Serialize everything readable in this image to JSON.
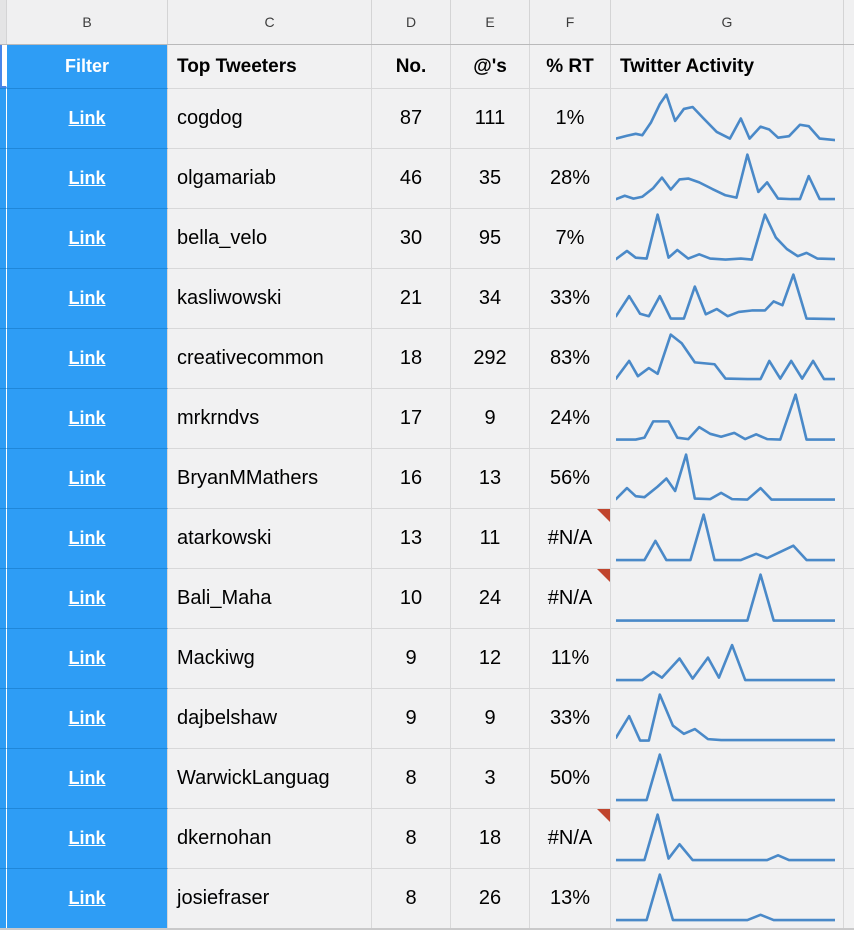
{
  "column_strip": {
    "letters": [
      "B",
      "C",
      "D",
      "E",
      "F",
      "G"
    ]
  },
  "header_row": {
    "filter_label": "Filter",
    "tweeters_label": "Top Tweeters",
    "no_label": "No.",
    "ats_label": "@'s",
    "rt_label": "% RT",
    "activity_label": "Twitter Activity"
  },
  "colors": {
    "link_blue": "#2e9df5",
    "selection_blue": "#4a86e8",
    "sparkline_blue": "#4a89c8",
    "note_red": "#c0452e",
    "cell_bg": "#f1f1f2",
    "gridline": "#d8d8d9"
  },
  "rows": [
    {
      "link": "Link",
      "name": "cogdog",
      "no": "87",
      "ats": "111",
      "rt": "1%",
      "note": false,
      "spark": [
        [
          0,
          0.08
        ],
        [
          5,
          0.14
        ],
        [
          9,
          0.18
        ],
        [
          12,
          0.15
        ],
        [
          16,
          0.42
        ],
        [
          20,
          0.8
        ],
        [
          23,
          1.0
        ],
        [
          27,
          0.45
        ],
        [
          31,
          0.7
        ],
        [
          35,
          0.74
        ],
        [
          40,
          0.5
        ],
        [
          46,
          0.22
        ],
        [
          52,
          0.08
        ],
        [
          57,
          0.5
        ],
        [
          61,
          0.08
        ],
        [
          66,
          0.33
        ],
        [
          70,
          0.27
        ],
        [
          74,
          0.1
        ],
        [
          79,
          0.13
        ],
        [
          84,
          0.37
        ],
        [
          88,
          0.34
        ],
        [
          93,
          0.08
        ],
        [
          100,
          0.05
        ]
      ]
    },
    {
      "link": "Link",
      "name": "olgamariab",
      "no": "46",
      "ats": "35",
      "rt": "28%",
      "note": false,
      "spark": [
        [
          0,
          0.07
        ],
        [
          4,
          0.14
        ],
        [
          8,
          0.08
        ],
        [
          12,
          0.12
        ],
        [
          17,
          0.3
        ],
        [
          21,
          0.52
        ],
        [
          25,
          0.27
        ],
        [
          29,
          0.48
        ],
        [
          33,
          0.5
        ],
        [
          38,
          0.42
        ],
        [
          44,
          0.28
        ],
        [
          50,
          0.15
        ],
        [
          55,
          0.1
        ],
        [
          60,
          1.0
        ],
        [
          65,
          0.22
        ],
        [
          69,
          0.42
        ],
        [
          74,
          0.08
        ],
        [
          80,
          0.07
        ],
        [
          84,
          0.07
        ],
        [
          88,
          0.55
        ],
        [
          93,
          0.07
        ],
        [
          100,
          0.07
        ]
      ]
    },
    {
      "link": "Link",
      "name": "bella_velo",
      "no": "30",
      "ats": "95",
      "rt": "7%",
      "note": false,
      "spark": [
        [
          0,
          0.07
        ],
        [
          5,
          0.24
        ],
        [
          9,
          0.1
        ],
        [
          14,
          0.08
        ],
        [
          19,
          1.0
        ],
        [
          24,
          0.1
        ],
        [
          28,
          0.26
        ],
        [
          33,
          0.08
        ],
        [
          38,
          0.17
        ],
        [
          43,
          0.08
        ],
        [
          50,
          0.06
        ],
        [
          57,
          0.08
        ],
        [
          62,
          0.06
        ],
        [
          68,
          1.0
        ],
        [
          73,
          0.52
        ],
        [
          78,
          0.28
        ],
        [
          83,
          0.13
        ],
        [
          87,
          0.2
        ],
        [
          92,
          0.08
        ],
        [
          100,
          0.07
        ]
      ]
    },
    {
      "link": "Link",
      "name": "kasliwowski",
      "no": "21",
      "ats": "34",
      "rt": "33%",
      "note": false,
      "spark": [
        [
          0,
          0.13
        ],
        [
          6,
          0.55
        ],
        [
          11,
          0.18
        ],
        [
          15,
          0.13
        ],
        [
          20,
          0.55
        ],
        [
          25,
          0.08
        ],
        [
          31,
          0.08
        ],
        [
          36,
          0.75
        ],
        [
          41,
          0.17
        ],
        [
          46,
          0.28
        ],
        [
          51,
          0.13
        ],
        [
          56,
          0.22
        ],
        [
          62,
          0.25
        ],
        [
          68,
          0.25
        ],
        [
          72,
          0.44
        ],
        [
          76,
          0.36
        ],
        [
          81,
          1.0
        ],
        [
          87,
          0.08
        ],
        [
          100,
          0.07
        ]
      ]
    },
    {
      "link": "Link",
      "name": "creativecommon",
      "no": "18",
      "ats": "292",
      "rt": "83%",
      "note": false,
      "spark": [
        [
          0,
          0.08
        ],
        [
          6,
          0.45
        ],
        [
          10,
          0.13
        ],
        [
          15,
          0.3
        ],
        [
          19,
          0.18
        ],
        [
          25,
          1.0
        ],
        [
          30,
          0.82
        ],
        [
          36,
          0.42
        ],
        [
          45,
          0.38
        ],
        [
          50,
          0.08
        ],
        [
          60,
          0.07
        ],
        [
          66,
          0.07
        ],
        [
          70,
          0.45
        ],
        [
          75,
          0.08
        ],
        [
          80,
          0.45
        ],
        [
          85,
          0.08
        ],
        [
          90,
          0.45
        ],
        [
          95,
          0.07
        ],
        [
          100,
          0.07
        ]
      ]
    },
    {
      "link": "Link",
      "name": "mrkrndvs",
      "no": "17",
      "ats": "9",
      "rt": "24%",
      "note": false,
      "spark": [
        [
          0,
          0.06
        ],
        [
          9,
          0.06
        ],
        [
          13,
          0.1
        ],
        [
          17,
          0.44
        ],
        [
          24,
          0.44
        ],
        [
          28,
          0.1
        ],
        [
          33,
          0.07
        ],
        [
          38,
          0.32
        ],
        [
          43,
          0.18
        ],
        [
          48,
          0.12
        ],
        [
          54,
          0.2
        ],
        [
          59,
          0.07
        ],
        [
          64,
          0.17
        ],
        [
          69,
          0.07
        ],
        [
          75,
          0.06
        ],
        [
          82,
          1.0
        ],
        [
          87,
          0.06
        ],
        [
          100,
          0.06
        ]
      ]
    },
    {
      "link": "Link",
      "name": "BryanMMathers",
      "no": "16",
      "ats": "13",
      "rt": "56%",
      "note": false,
      "spark": [
        [
          0,
          0.07
        ],
        [
          5,
          0.3
        ],
        [
          9,
          0.13
        ],
        [
          13,
          0.11
        ],
        [
          19,
          0.33
        ],
        [
          23,
          0.5
        ],
        [
          27,
          0.24
        ],
        [
          32,
          1.0
        ],
        [
          36,
          0.08
        ],
        [
          43,
          0.07
        ],
        [
          48,
          0.2
        ],
        [
          53,
          0.07
        ],
        [
          60,
          0.06
        ],
        [
          66,
          0.3
        ],
        [
          71,
          0.06
        ],
        [
          100,
          0.06
        ]
      ]
    },
    {
      "link": "Link",
      "name": "atarkowski",
      "no": "13",
      "ats": "11",
      "rt": "#N/A",
      "note": true,
      "spark": [
        [
          0,
          0.05
        ],
        [
          13,
          0.05
        ],
        [
          18,
          0.45
        ],
        [
          23,
          0.05
        ],
        [
          34,
          0.05
        ],
        [
          40,
          1.0
        ],
        [
          45,
          0.05
        ],
        [
          57,
          0.05
        ],
        [
          64,
          0.18
        ],
        [
          69,
          0.09
        ],
        [
          75,
          0.22
        ],
        [
          81,
          0.35
        ],
        [
          87,
          0.05
        ],
        [
          100,
          0.05
        ]
      ]
    },
    {
      "link": "Link",
      "name": "Bali_Maha",
      "no": "10",
      "ats": "24",
      "rt": "#N/A",
      "note": true,
      "spark": [
        [
          0,
          0.04
        ],
        [
          60,
          0.04
        ],
        [
          66,
          1.0
        ],
        [
          72,
          0.04
        ],
        [
          100,
          0.04
        ]
      ]
    },
    {
      "link": "Link",
      "name": "Mackiwg",
      "no": "9",
      "ats": "12",
      "rt": "11%",
      "note": false,
      "spark": [
        [
          0,
          0.05
        ],
        [
          12,
          0.05
        ],
        [
          17,
          0.22
        ],
        [
          21,
          0.1
        ],
        [
          29,
          0.5
        ],
        [
          35,
          0.08
        ],
        [
          42,
          0.52
        ],
        [
          47,
          0.1
        ],
        [
          53,
          0.78
        ],
        [
          59,
          0.05
        ],
        [
          100,
          0.05
        ]
      ]
    },
    {
      "link": "Link",
      "name": "dajbelshaw",
      "no": "9",
      "ats": "9",
      "rt": "33%",
      "note": false,
      "spark": [
        [
          0,
          0.1
        ],
        [
          6,
          0.55
        ],
        [
          11,
          0.04
        ],
        [
          15,
          0.04
        ],
        [
          20,
          1.0
        ],
        [
          26,
          0.35
        ],
        [
          31,
          0.18
        ],
        [
          36,
          0.28
        ],
        [
          42,
          0.07
        ],
        [
          48,
          0.05
        ],
        [
          100,
          0.05
        ]
      ]
    },
    {
      "link": "Link",
      "name": "WarwickLanguag",
      "no": "8",
      "ats": "3",
      "rt": "50%",
      "note": false,
      "spark": [
        [
          0,
          0.05
        ],
        [
          14,
          0.05
        ],
        [
          20,
          1.0
        ],
        [
          26,
          0.05
        ],
        [
          100,
          0.05
        ]
      ]
    },
    {
      "link": "Link",
      "name": "dkernohan",
      "no": "8",
      "ats": "18",
      "rt": "#N/A",
      "note": true,
      "spark": [
        [
          0,
          0.05
        ],
        [
          13,
          0.05
        ],
        [
          19,
          1.0
        ],
        [
          24,
          0.08
        ],
        [
          29,
          0.38
        ],
        [
          35,
          0.05
        ],
        [
          69,
          0.05
        ],
        [
          74,
          0.15
        ],
        [
          79,
          0.05
        ],
        [
          100,
          0.05
        ]
      ]
    },
    {
      "link": "Link",
      "name": "josiefraser",
      "no": "8",
      "ats": "26",
      "rt": "13%",
      "note": false,
      "spark": [
        [
          0,
          0.05
        ],
        [
          14,
          0.05
        ],
        [
          20,
          1.0
        ],
        [
          26,
          0.05
        ],
        [
          60,
          0.05
        ],
        [
          66,
          0.16
        ],
        [
          72,
          0.05
        ],
        [
          100,
          0.05
        ]
      ]
    }
  ]
}
